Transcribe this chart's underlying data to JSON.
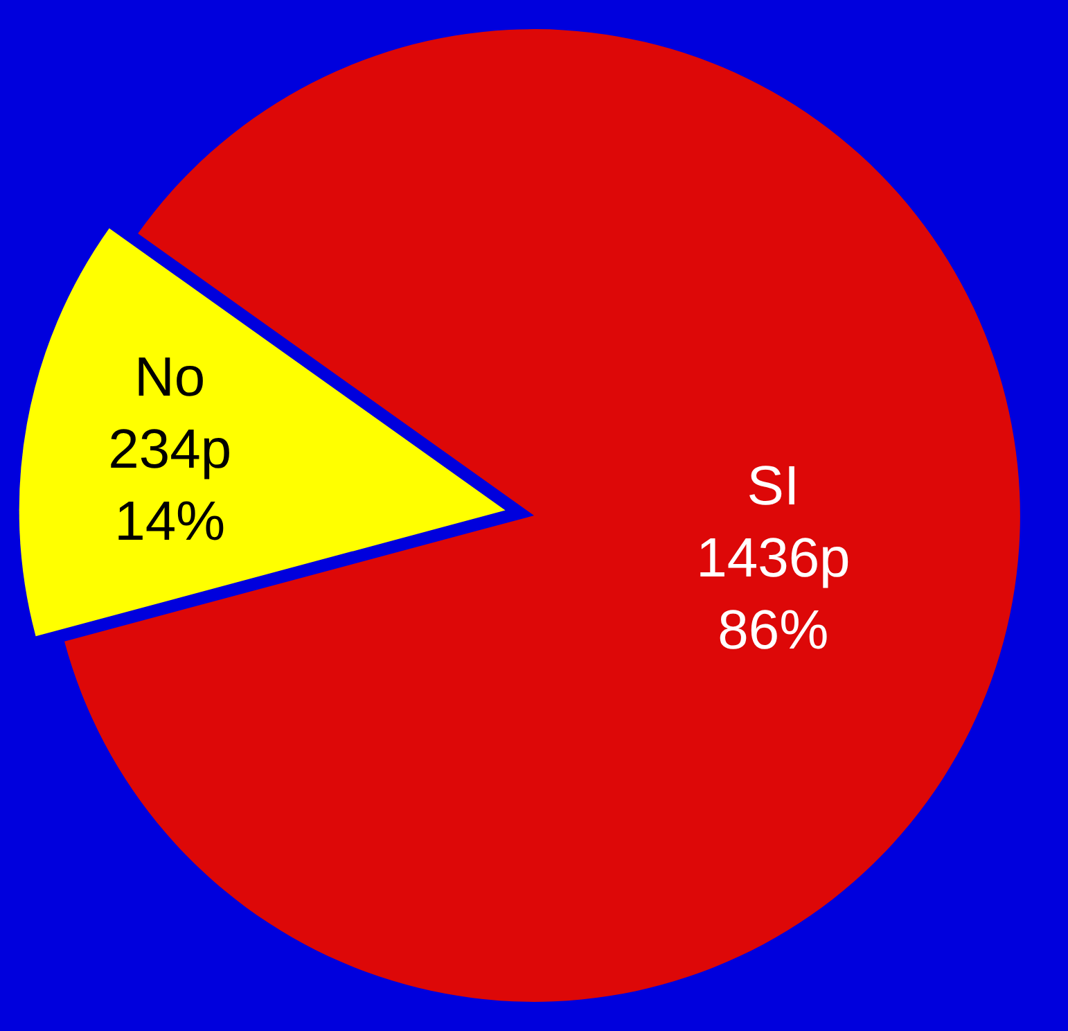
{
  "chart_data": {
    "type": "pie",
    "categories": [
      "No",
      "SI"
    ],
    "values": [
      234,
      1436
    ],
    "colors": [
      "#ffff00",
      "#dd0808"
    ],
    "value_labels": [
      "234p\n14%",
      "1436p\n86%"
    ],
    "legend": false
  }
}
